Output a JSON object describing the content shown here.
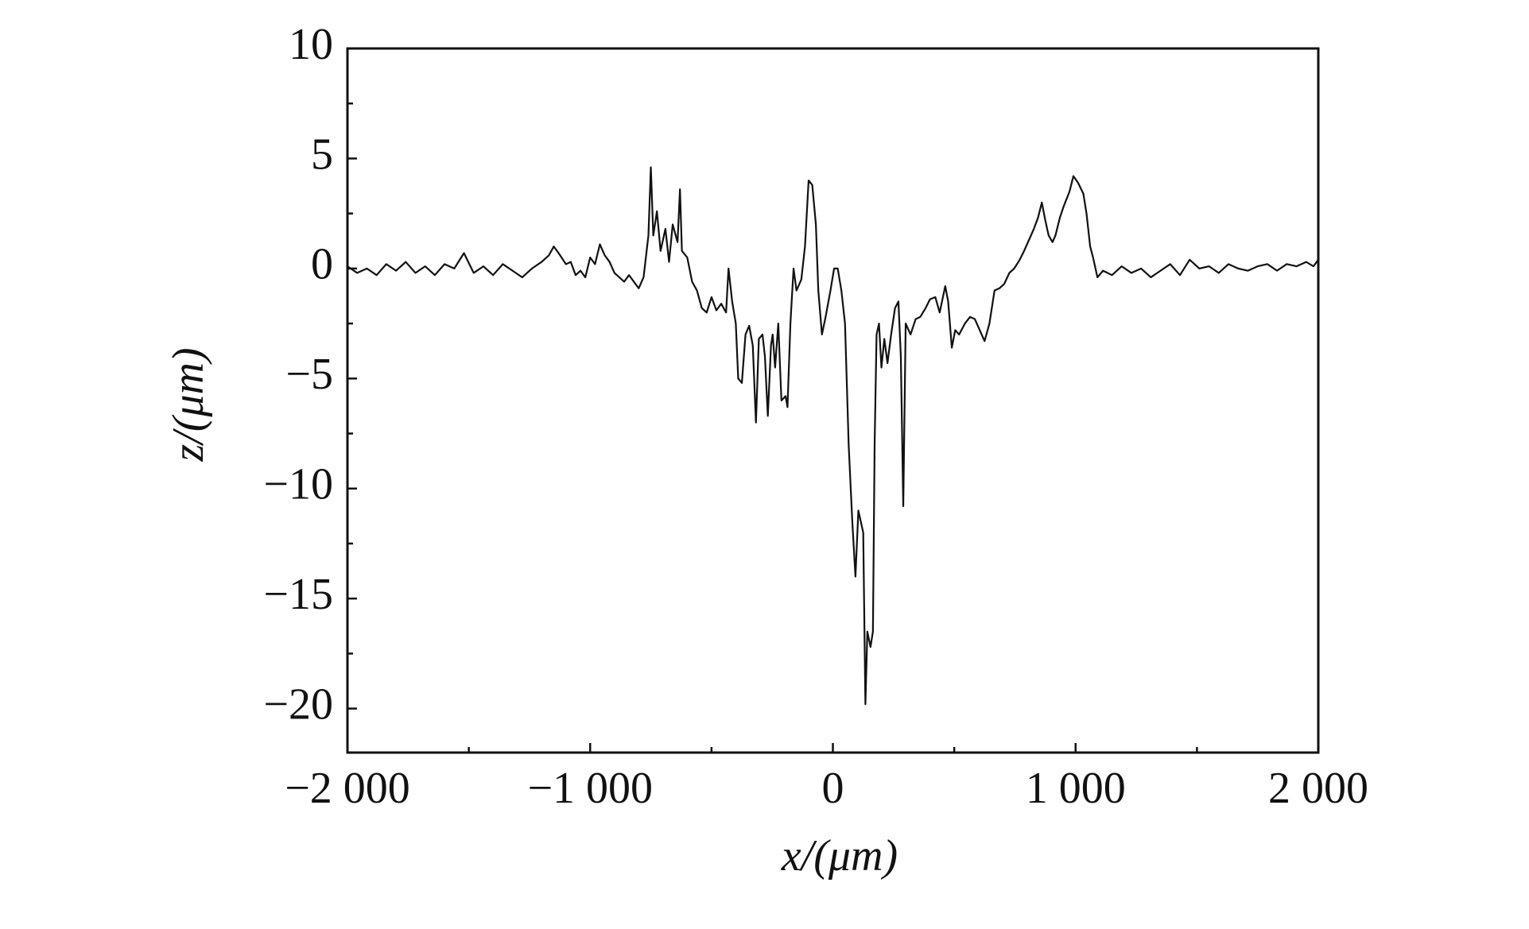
{
  "chart_data": {
    "type": "line",
    "xlabel": "x/(μm)",
    "ylabel": "z/(μm)",
    "xlim": [
      -2000,
      2000
    ],
    "ylim": [
      -22,
      10
    ],
    "xticks": [
      {
        "value": -2000,
        "label": "−2 000"
      },
      {
        "value": -1000,
        "label": "−1 000"
      },
      0,
      {
        "value": 1000,
        "label": "1 000"
      },
      {
        "value": 2000,
        "label": "2 000"
      }
    ],
    "yticks": [
      10,
      5,
      0,
      {
        "value": -5,
        "label": "−5"
      },
      {
        "value": -10,
        "label": "−10"
      },
      {
        "value": -15,
        "label": "−15"
      },
      {
        "value": -20,
        "label": "−20"
      }
    ],
    "minor_xticks": [
      -1500,
      -500,
      500,
      1500
    ],
    "minor_yticks": [
      7.5,
      2.5,
      -2.5,
      -7.5,
      -12.5,
      -17.5
    ],
    "grid": false,
    "series": [
      {
        "color": "#111111",
        "x": [
          -2000,
          -1960,
          -1920,
          -1880,
          -1840,
          -1800,
          -1760,
          -1720,
          -1680,
          -1640,
          -1600,
          -1560,
          -1520,
          -1480,
          -1440,
          -1400,
          -1360,
          -1320,
          -1280,
          -1240,
          -1200,
          -1170,
          -1150,
          -1130,
          -1100,
          -1080,
          -1060,
          -1040,
          -1020,
          -1000,
          -980,
          -960,
          -940,
          -920,
          -900,
          -880,
          -860,
          -840,
          -800,
          -780,
          -760,
          -750,
          -740,
          -725,
          -710,
          -690,
          -675,
          -660,
          -640,
          -630,
          -622,
          -600,
          -580,
          -560,
          -540,
          -520,
          -500,
          -480,
          -460,
          -440,
          -430,
          -415,
          -400,
          -390,
          -375,
          -360,
          -345,
          -330,
          -317,
          -305,
          -290,
          -280,
          -268,
          -255,
          -248,
          -238,
          -225,
          -212,
          -195,
          -187,
          -175,
          -162,
          -150,
          -130,
          -115,
          -100,
          -85,
          -70,
          -60,
          -45,
          -30,
          -10,
          5,
          20,
          35,
          50,
          65,
          80,
          93,
          105,
          115,
          125,
          134,
          142,
          155,
          165,
          172,
          180,
          190,
          200,
          212,
          225,
          240,
          256,
          270,
          280,
          290,
          300,
          320,
          341,
          360,
          382,
          400,
          422,
          440,
          463,
          475,
          490,
          504,
          520,
          544,
          565,
          585,
          605,
          625,
          645,
          666,
          686,
          706,
          727,
          747,
          770,
          788,
          808,
          828,
          845,
          861,
          875,
          889,
          905,
          917,
          935,
          950,
          975,
          991,
          1010,
          1032,
          1045,
          1060,
          1072,
          1090,
          1113,
          1150,
          1190,
          1230,
          1270,
          1310,
          1350,
          1390,
          1430,
          1470,
          1510,
          1550,
          1590,
          1630,
          1670,
          1710,
          1750,
          1790,
          1830,
          1870,
          1910,
          1950,
          1980,
          2000
        ],
        "values": [
          0.1,
          -0.2,
          0,
          -0.3,
          0.2,
          -0.1,
          0.3,
          -0.2,
          0.1,
          -0.3,
          0.2,
          0,
          0.7,
          -0.2,
          0.1,
          -0.3,
          0.2,
          -0.1,
          -0.4,
          0,
          0.3,
          0.6,
          1,
          0.7,
          0.2,
          0.3,
          -0.3,
          -0.1,
          -0.4,
          0.5,
          0.2,
          1.1,
          0.6,
          0.3,
          -0.2,
          -0.4,
          -0.6,
          -0.3,
          -0.9,
          -0.4,
          1.5,
          4.6,
          1.5,
          2.6,
          0.8,
          1.8,
          0.3,
          2,
          1.2,
          3.6,
          0.8,
          0.5,
          -0.6,
          -1,
          -1.8,
          -2,
          -1.3,
          -1.9,
          -1.6,
          -2,
          0,
          -1.5,
          -2.5,
          -5,
          -5.2,
          -3,
          -2.6,
          -3.5,
          -7,
          -3.2,
          -3,
          -4,
          -6.7,
          -3.5,
          -3,
          -4.5,
          -2.5,
          -6,
          -5.8,
          -6.3,
          -2.5,
          0,
          -1,
          -0.5,
          1,
          4,
          3.8,
          2,
          -1,
          -3,
          -2.2,
          -1,
          0,
          0,
          -1,
          -2.5,
          -8,
          -11.5,
          -14,
          -11,
          -11.5,
          -12,
          -19.8,
          -16.5,
          -17.2,
          -16.5,
          -8,
          -3,
          -2.5,
          -4.5,
          -3.2,
          -4.3,
          -3,
          -1.8,
          -1.5,
          -4,
          -10.8,
          -2.5,
          -3,
          -2.3,
          -2.2,
          -1.8,
          -1.4,
          -1.3,
          -2,
          -0.8,
          -1.5,
          -3.6,
          -2.8,
          -3,
          -2.5,
          -2.2,
          -2.3,
          -2.8,
          -3.3,
          -2.5,
          -1,
          -0.9,
          -0.7,
          -0.2,
          0,
          0.4,
          0.8,
          1.3,
          1.8,
          2.3,
          3,
          2.2,
          1.5,
          1.2,
          1.5,
          2.3,
          2.8,
          3.5,
          4.2,
          3.9,
          3.4,
          2.5,
          1,
          0.5,
          -0.4,
          -0.1,
          -0.3,
          0.1,
          -0.2,
          0,
          -0.4,
          -0.1,
          0.2,
          -0.3,
          0.4,
          0,
          0.1,
          -0.2,
          0.2,
          0,
          -0.1,
          0.1,
          0.2,
          -0.1,
          0.2,
          0.1,
          0.3,
          0.1,
          0.4
        ]
      }
    ]
  }
}
